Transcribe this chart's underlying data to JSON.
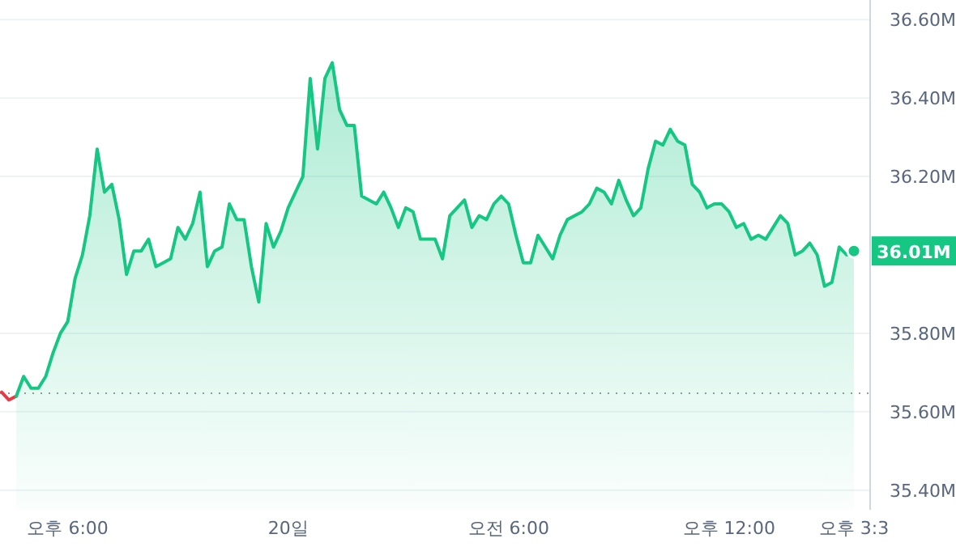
{
  "chart_data": {
    "type": "area",
    "ylim": [
      35.35,
      36.65
    ],
    "categories": [
      null,
      null,
      null,
      null,
      null,
      null,
      null,
      null,
      null,
      "오후 6:00",
      null,
      null,
      null,
      null,
      null,
      null,
      null,
      null,
      null,
      null,
      null,
      null,
      null,
      null,
      null,
      null,
      null,
      null,
      null,
      null,
      null,
      null,
      null,
      null,
      null,
      null,
      null,
      null,
      null,
      "20일",
      null,
      null,
      null,
      null,
      null,
      null,
      null,
      null,
      null,
      null,
      null,
      null,
      null,
      null,
      null,
      null,
      null,
      null,
      null,
      null,
      null,
      null,
      null,
      null,
      null,
      null,
      null,
      null,
      null,
      "오전 6:00",
      null,
      null,
      null,
      null,
      null,
      null,
      null,
      null,
      null,
      null,
      null,
      null,
      null,
      null,
      null,
      null,
      null,
      null,
      null,
      null,
      null,
      null,
      null,
      null,
      null,
      null,
      null,
      null,
      null,
      "오후 12:00",
      null,
      null,
      null,
      null,
      null,
      null,
      null,
      null,
      null,
      null,
      null,
      null,
      null,
      null,
      null,
      null,
      "오후 3:3"
    ],
    "yticks": [
      {
        "value": 35.4,
        "label": "35.40M"
      },
      {
        "value": 35.6,
        "label": "35.60M"
      },
      {
        "value": 35.8,
        "label": "35.80M"
      },
      {
        "value": 36.2,
        "label": "36.20M"
      },
      {
        "value": 36.4,
        "label": "36.40M"
      },
      {
        "value": 36.6,
        "label": "36.60M"
      }
    ],
    "grid": "y",
    "ref_lines": [
      {
        "axis": "y",
        "value": 35.647,
        "color": "#999999",
        "line_style": "dotted"
      }
    ],
    "annotations": [
      "36.01M"
    ],
    "series": [
      {
        "type": "line",
        "color": "#ea3943",
        "values": [
          35.65,
          35.63,
          35.64,
          null,
          null,
          null,
          null,
          null,
          null,
          null,
          null,
          null,
          null,
          null,
          null,
          null,
          null,
          null,
          null,
          null,
          null,
          null,
          null,
          null,
          null,
          null,
          null,
          null,
          null,
          null,
          null,
          null,
          null,
          null,
          null,
          null,
          null,
          null,
          null,
          null,
          null,
          null,
          null,
          null,
          null,
          null,
          null,
          null,
          null,
          null,
          null,
          null,
          null,
          null,
          null,
          null,
          null,
          null,
          null,
          null,
          null,
          null,
          null,
          null,
          null,
          null,
          null,
          null,
          null,
          null,
          null,
          null,
          null,
          null,
          null,
          null,
          null,
          null,
          null,
          null,
          null,
          null,
          null,
          null,
          null,
          null,
          null,
          null,
          null,
          null,
          null,
          null,
          null,
          null,
          null,
          null,
          null,
          null,
          null,
          null,
          null,
          null,
          null,
          null,
          null,
          null,
          null,
          null,
          null,
          null,
          null,
          null,
          null,
          null,
          null,
          null,
          null
        ]
      },
      {
        "color": "#16c784",
        "values": [
          null,
          null,
          35.64,
          35.69,
          35.66,
          35.66,
          35.69,
          35.75,
          35.8,
          35.83,
          35.94,
          36.0,
          36.1,
          36.27,
          36.16,
          36.18,
          36.09,
          35.95,
          36.01,
          36.01,
          36.04,
          35.97,
          35.98,
          35.99,
          36.07,
          36.04,
          36.08,
          36.16,
          35.97,
          36.01,
          36.02,
          36.13,
          36.09,
          36.09,
          35.97,
          35.88,
          36.08,
          36.02,
          36.06,
          36.12,
          36.16,
          36.2,
          36.45,
          36.27,
          36.45,
          36.49,
          36.37,
          36.33,
          36.33,
          36.15,
          36.14,
          36.13,
          36.16,
          36.12,
          36.07,
          36.12,
          36.11,
          36.04,
          36.04,
          36.04,
          35.99,
          36.1,
          36.12,
          36.14,
          36.07,
          36.1,
          36.09,
          36.13,
          36.15,
          36.13,
          36.05,
          35.98,
          35.98,
          36.05,
          36.02,
          35.99,
          36.05,
          36.09,
          36.1,
          36.11,
          36.13,
          36.17,
          36.16,
          36.13,
          36.19,
          36.14,
          36.1,
          36.12,
          36.22,
          36.29,
          36.28,
          36.32,
          36.29,
          36.28,
          36.18,
          36.16,
          36.12,
          36.13,
          36.13,
          36.11,
          36.07,
          36.08,
          36.04,
          36.05,
          36.04,
          36.07,
          36.1,
          36.08,
          36.0,
          36.01,
          36.03,
          36.0,
          35.92,
          35.93,
          36.02,
          36.0,
          36.01
        ]
      }
    ]
  }
}
